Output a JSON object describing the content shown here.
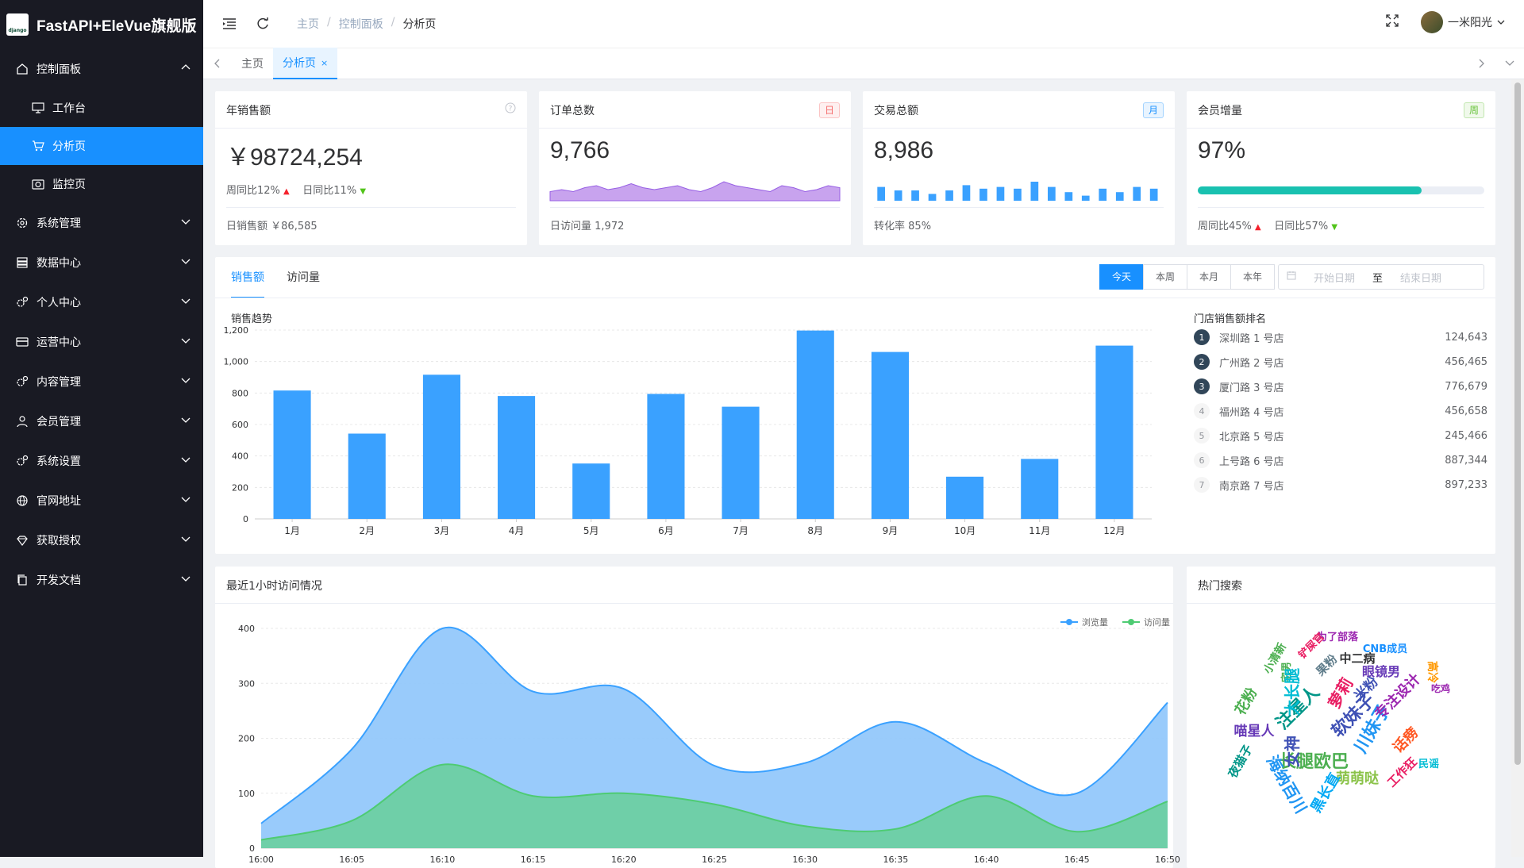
{
  "app": {
    "title": "FastAPI+EleVue旗舰版",
    "logo_text": "django"
  },
  "sidebar": {
    "items": [
      {
        "label": "控制面板",
        "icon": "home-icon",
        "expanded": true,
        "children": [
          {
            "label": "工作台",
            "icon": "monitor-icon"
          },
          {
            "label": "分析页",
            "icon": "cart-icon",
            "active": true
          },
          {
            "label": "监控页",
            "icon": "camera-icon"
          }
        ]
      },
      {
        "label": "系统管理",
        "icon": "gear-icon"
      },
      {
        "label": "数据中心",
        "icon": "database-icon"
      },
      {
        "label": "个人中心",
        "icon": "gears-icon"
      },
      {
        "label": "运营中心",
        "icon": "card-icon"
      },
      {
        "label": "内容管理",
        "icon": "gears-icon"
      },
      {
        "label": "会员管理",
        "icon": "user-icon"
      },
      {
        "label": "系统设置",
        "icon": "gears-icon"
      },
      {
        "label": "官网地址",
        "icon": "globe-icon"
      },
      {
        "label": "获取授权",
        "icon": "diamond-icon"
      },
      {
        "label": "开发文档",
        "icon": "copy-icon"
      }
    ]
  },
  "header": {
    "breadcrumb": [
      "主页",
      "控制面板",
      "分析页"
    ],
    "user": "一米阳光"
  },
  "tabs": [
    {
      "label": "主页"
    },
    {
      "label": "分析页",
      "active": true,
      "close": "×"
    }
  ],
  "stats": {
    "sales": {
      "title": "年销售额",
      "value": "￥98724,254",
      "week": "周同比12%",
      "day": "日同比11%",
      "foot_label": "日销售额",
      "foot_value": "￥86,585"
    },
    "orders": {
      "title": "订单总数",
      "tag": "日",
      "value": "9,766",
      "foot_label": "日访问量",
      "foot_value": "1,972",
      "sparkline": [
        3,
        4,
        3,
        5,
        6,
        4,
        5,
        7,
        5,
        4,
        5,
        6,
        4,
        3,
        5,
        8,
        6,
        5,
        4,
        3,
        6,
        5,
        3,
        4,
        6,
        5
      ]
    },
    "trade": {
      "title": "交易总额",
      "tag": "月",
      "value": "8,986",
      "foot_label": "转化率",
      "foot_value": "85%",
      "bars": [
        7,
        5,
        5,
        3,
        5,
        8,
        6,
        7,
        6,
        10,
        7,
        4,
        2,
        6,
        4,
        7,
        6
      ]
    },
    "members": {
      "title": "会员增量",
      "tag": "周",
      "value": "97%",
      "progress": 78,
      "week": "周同比45%",
      "day": "日同比57%"
    }
  },
  "sales_panel": {
    "tabs": [
      "销售额",
      "访问量"
    ],
    "ranges": [
      "今天",
      "本周",
      "本月",
      "本年"
    ],
    "date_start": "开始日期",
    "date_sep": "至",
    "date_end": "结束日期",
    "chart_title": "销售趋势",
    "rank_title": "门店销售额排名",
    "rank": [
      {
        "n": "1",
        "name": "深圳路 1 号店",
        "value": "124,643"
      },
      {
        "n": "2",
        "name": "广州路 2 号店",
        "value": "456,465"
      },
      {
        "n": "3",
        "name": "厦门路 3 号店",
        "value": "776,679"
      },
      {
        "n": "4",
        "name": "福州路 4 号店",
        "value": "456,658"
      },
      {
        "n": "5",
        "name": "北京路 5 号店",
        "value": "245,466"
      },
      {
        "n": "6",
        "name": "上号路 6 号店",
        "value": "887,344"
      },
      {
        "n": "7",
        "name": "南京路 7 号店",
        "value": "897,233"
      }
    ]
  },
  "visits_panel": {
    "title": "最近1小时访问情况"
  },
  "hot_panel": {
    "title": "热门搜索",
    "words": [
      {
        "t": "为了部落",
        "c": "#9c27b0"
      },
      {
        "t": "CNB成员",
        "c": "#1890ff"
      },
      {
        "t": "中二病",
        "c": "#303133"
      },
      {
        "t": "眼镜男",
        "c": "#673ab7"
      },
      {
        "t": "宅男",
        "c": "#4caf50"
      },
      {
        "t": "注星人",
        "c": "#009688"
      },
      {
        "t": "软妹子",
        "c": "#3f51b5"
      },
      {
        "t": "萝莉",
        "c": "#e91e63"
      },
      {
        "t": "长腿欧巴",
        "c": "#4caf50"
      },
      {
        "t": "女神",
        "c": "#3f51b5"
      },
      {
        "t": "川妹子",
        "c": "#2196f3"
      },
      {
        "t": "萌萌哒",
        "c": "#8bc34a"
      },
      {
        "t": "喵星人",
        "c": "#673ab7"
      },
      {
        "t": "大长腿",
        "c": "#00bcd4"
      },
      {
        "t": "专注设计",
        "c": "#9c27b0"
      },
      {
        "t": "话痨",
        "c": "#ff5722"
      },
      {
        "t": "海纳百川",
        "c": "#2196f3"
      },
      {
        "t": "花粉",
        "c": "#4caf50"
      },
      {
        "t": "小清新",
        "c": "#4caf50"
      },
      {
        "t": "铲屎官",
        "c": "#e91e63"
      },
      {
        "t": "高冷",
        "c": "#ff9800"
      },
      {
        "t": "吃鸡",
        "c": "#9c27b0"
      },
      {
        "t": "民谣",
        "c": "#00bcd4"
      },
      {
        "t": "黑长直",
        "c": "#03a9f4"
      },
      {
        "t": "夜猫子",
        "c": "#009688"
      },
      {
        "t": "米粉",
        "c": "#3f51b5"
      },
      {
        "t": "工作狂",
        "c": "#e91e63"
      },
      {
        "t": "果粉",
        "c": "#607d8b"
      }
    ]
  },
  "chart_data": [
    {
      "type": "bar",
      "title": "销售趋势",
      "categories": [
        "1月",
        "2月",
        "3月",
        "4月",
        "5月",
        "6月",
        "7月",
        "8月",
        "9月",
        "10月",
        "11月",
        "12月"
      ],
      "values": [
        816,
        542,
        916,
        781,
        352,
        794,
        713,
        1197,
        1061,
        268,
        381,
        1101
      ],
      "ylim": [
        0,
        1200
      ],
      "yticks": [
        0,
        200,
        400,
        600,
        800,
        "1,000",
        "1,200"
      ],
      "color": "#3aa1ff"
    },
    {
      "type": "area",
      "title": "最近1小时访问情况",
      "x": [
        "16:00",
        "16:05",
        "16:10",
        "16:15",
        "16:20",
        "16:25",
        "16:30",
        "16:35",
        "16:40",
        "16:45",
        "16:50"
      ],
      "yticks": [
        0,
        100,
        200,
        300,
        400
      ],
      "ylim": [
        0,
        400
      ],
      "series": [
        {
          "name": "浏览量",
          "color": "#3aa1ff",
          "values": [
            45,
            180,
            400,
            285,
            290,
            150,
            155,
            230,
            155,
            100,
            265
          ]
        },
        {
          "name": "访问量",
          "color": "#4ecb73",
          "values": [
            15,
            50,
            152,
            95,
            100,
            80,
            40,
            35,
            95,
            30,
            85
          ]
        }
      ]
    }
  ]
}
